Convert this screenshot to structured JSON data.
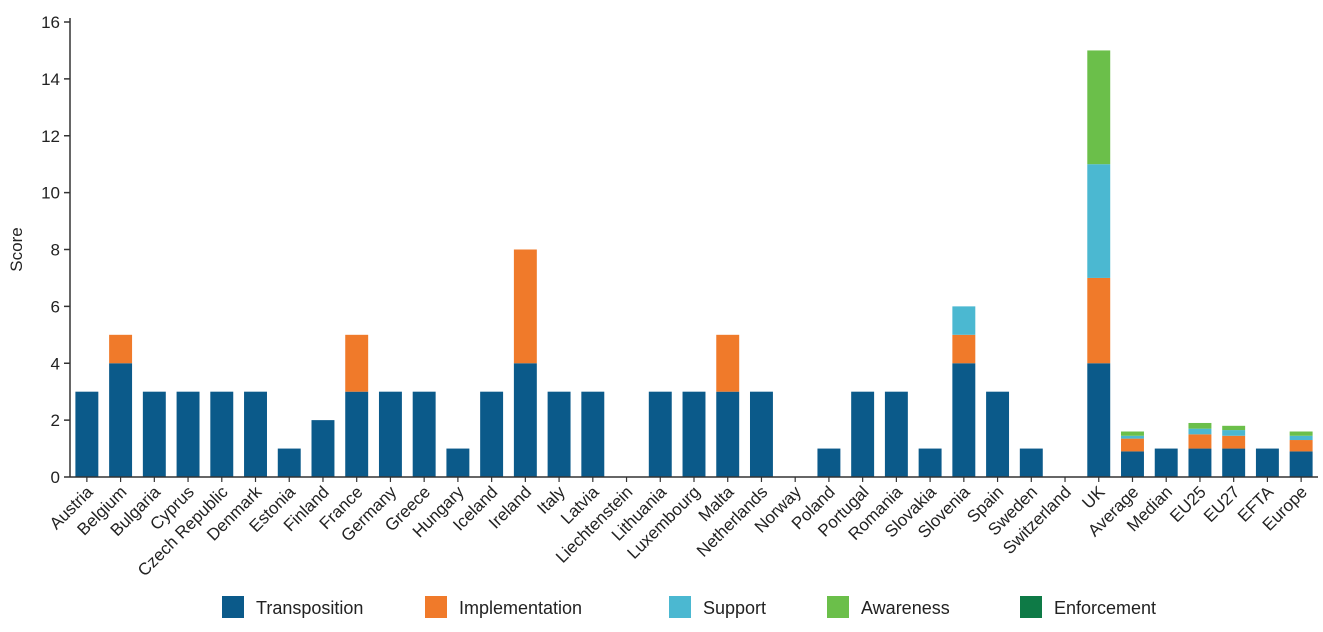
{
  "chart_data": {
    "type": "bar",
    "stacked": true,
    "ylabel": "Score",
    "xlabel": "",
    "ylim": [
      0,
      16
    ],
    "yticks": [
      0,
      2,
      4,
      6,
      8,
      10,
      12,
      14,
      16
    ],
    "grid": false,
    "legend_position": "bottom",
    "categories": [
      "Austria",
      "Belgium",
      "Bulgaria",
      "Cyprus",
      "Czech Republic",
      "Denmark",
      "Estonia",
      "Finland",
      "France",
      "Germany",
      "Greece",
      "Hungary",
      "Iceland",
      "Ireland",
      "Italy",
      "Latvia",
      "Liechtenstein",
      "Lithuania",
      "Luxembourg",
      "Malta",
      "Netherlands",
      "Norway",
      "Poland",
      "Portugal",
      "Romania",
      "Slovakia",
      "Slovenia",
      "Spain",
      "Sweden",
      "Switzerland",
      "UK",
      "Average",
      "Median",
      "EU25",
      "EU27",
      "EFTA",
      "Europe"
    ],
    "series": [
      {
        "name": "Transposition",
        "color": "#0b5a8a",
        "values": [
          3,
          4,
          3,
          3,
          3,
          3,
          1,
          2,
          3,
          3,
          3,
          1,
          3,
          4,
          3,
          3,
          0,
          3,
          3,
          3,
          3,
          0,
          1,
          3,
          3,
          1,
          4,
          3,
          1,
          0,
          4,
          0.9,
          1,
          1,
          1,
          1,
          0.9
        ]
      },
      {
        "name": "Implementation",
        "color": "#f07a2a",
        "values": [
          0,
          1,
          0,
          0,
          0,
          0,
          0,
          0,
          2,
          0,
          0,
          0,
          0,
          4,
          0,
          0,
          0,
          0,
          0,
          2,
          0,
          0,
          0,
          0,
          0,
          0,
          1,
          0,
          0,
          0,
          3,
          0.45,
          0,
          0.5,
          0.45,
          0,
          0.4
        ]
      },
      {
        "name": "Support",
        "color": "#4bb8d1",
        "values": [
          0,
          0,
          0,
          0,
          0,
          0,
          0,
          0,
          0,
          0,
          0,
          0,
          0,
          0,
          0,
          0,
          0,
          0,
          0,
          0,
          0,
          0,
          0,
          0,
          0,
          0,
          1,
          0,
          0,
          0,
          4,
          0.1,
          0,
          0.2,
          0.2,
          0,
          0.15
        ]
      },
      {
        "name": "Awareness",
        "color": "#6bbf4a",
        "values": [
          0,
          0,
          0,
          0,
          0,
          0,
          0,
          0,
          0,
          0,
          0,
          0,
          0,
          0,
          0,
          0,
          0,
          0,
          0,
          0,
          0,
          0,
          0,
          0,
          0,
          0,
          0,
          0,
          0,
          0,
          4,
          0.15,
          0,
          0.2,
          0.15,
          0,
          0.15
        ]
      },
      {
        "name": "Enforcement",
        "color": "#0e7a46",
        "values": [
          0,
          0,
          0,
          0,
          0,
          0,
          0,
          0,
          0,
          0,
          0,
          0,
          0,
          0,
          0,
          0,
          0,
          0,
          0,
          0,
          0,
          0,
          0,
          0,
          0,
          0,
          0,
          0,
          0,
          0,
          0,
          0,
          0,
          0,
          0,
          0,
          0
        ]
      }
    ]
  }
}
